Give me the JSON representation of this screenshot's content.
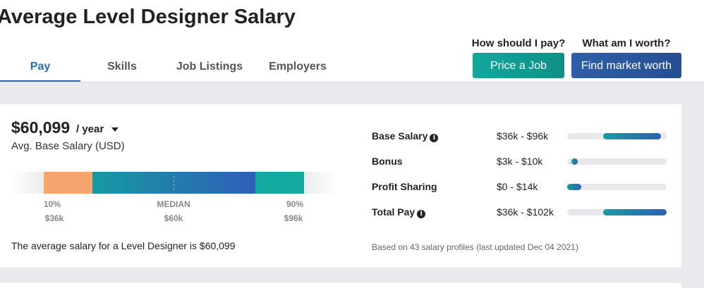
{
  "title": "Average Level Designer Salary",
  "tabs": [
    {
      "label": "Pay"
    },
    {
      "label": "Skills"
    },
    {
      "label": "Job Listings"
    },
    {
      "label": "Employers"
    }
  ],
  "cta": {
    "price": {
      "question": "How should I pay?",
      "button": "Price a Job"
    },
    "worth": {
      "question": "What am I worth?",
      "button": "Find market worth"
    }
  },
  "salary": {
    "amount": "$60,099",
    "period": "/ year",
    "subtitle": "Avg. Base Salary (USD)",
    "summary": "The average salary for a Level Designer is $60,099"
  },
  "percentiles": {
    "low": {
      "label": "10%",
      "value": "$36k"
    },
    "median": {
      "label": "MEDIAN",
      "value": "$60k"
    },
    "high": {
      "label": "90%",
      "value": "$96k"
    }
  },
  "breakdown": [
    {
      "label": "Base Salary",
      "range": "$36k - $96k",
      "info": true,
      "start": 0.36,
      "end": 0.94
    },
    {
      "label": "Bonus",
      "range": "$3k - $10k",
      "info": false,
      "start": 0.04,
      "end": 0.1
    },
    {
      "label": "Profit Sharing",
      "range": "$0 - $14k",
      "info": false,
      "start": 0.0,
      "end": 0.14
    },
    {
      "label": "Total Pay",
      "range": "$36k - $102k",
      "info": true,
      "start": 0.36,
      "end": 1.0
    }
  ],
  "footnote": "Based on 43 salary profiles (last updated Dec 04 2021)",
  "icons": {
    "info": "info-icon",
    "caret": "caret-down-icon"
  },
  "colors": {
    "accent_blue": "#2b6cb5",
    "teal": "#13a79e",
    "orange": "#f6a56e"
  }
}
